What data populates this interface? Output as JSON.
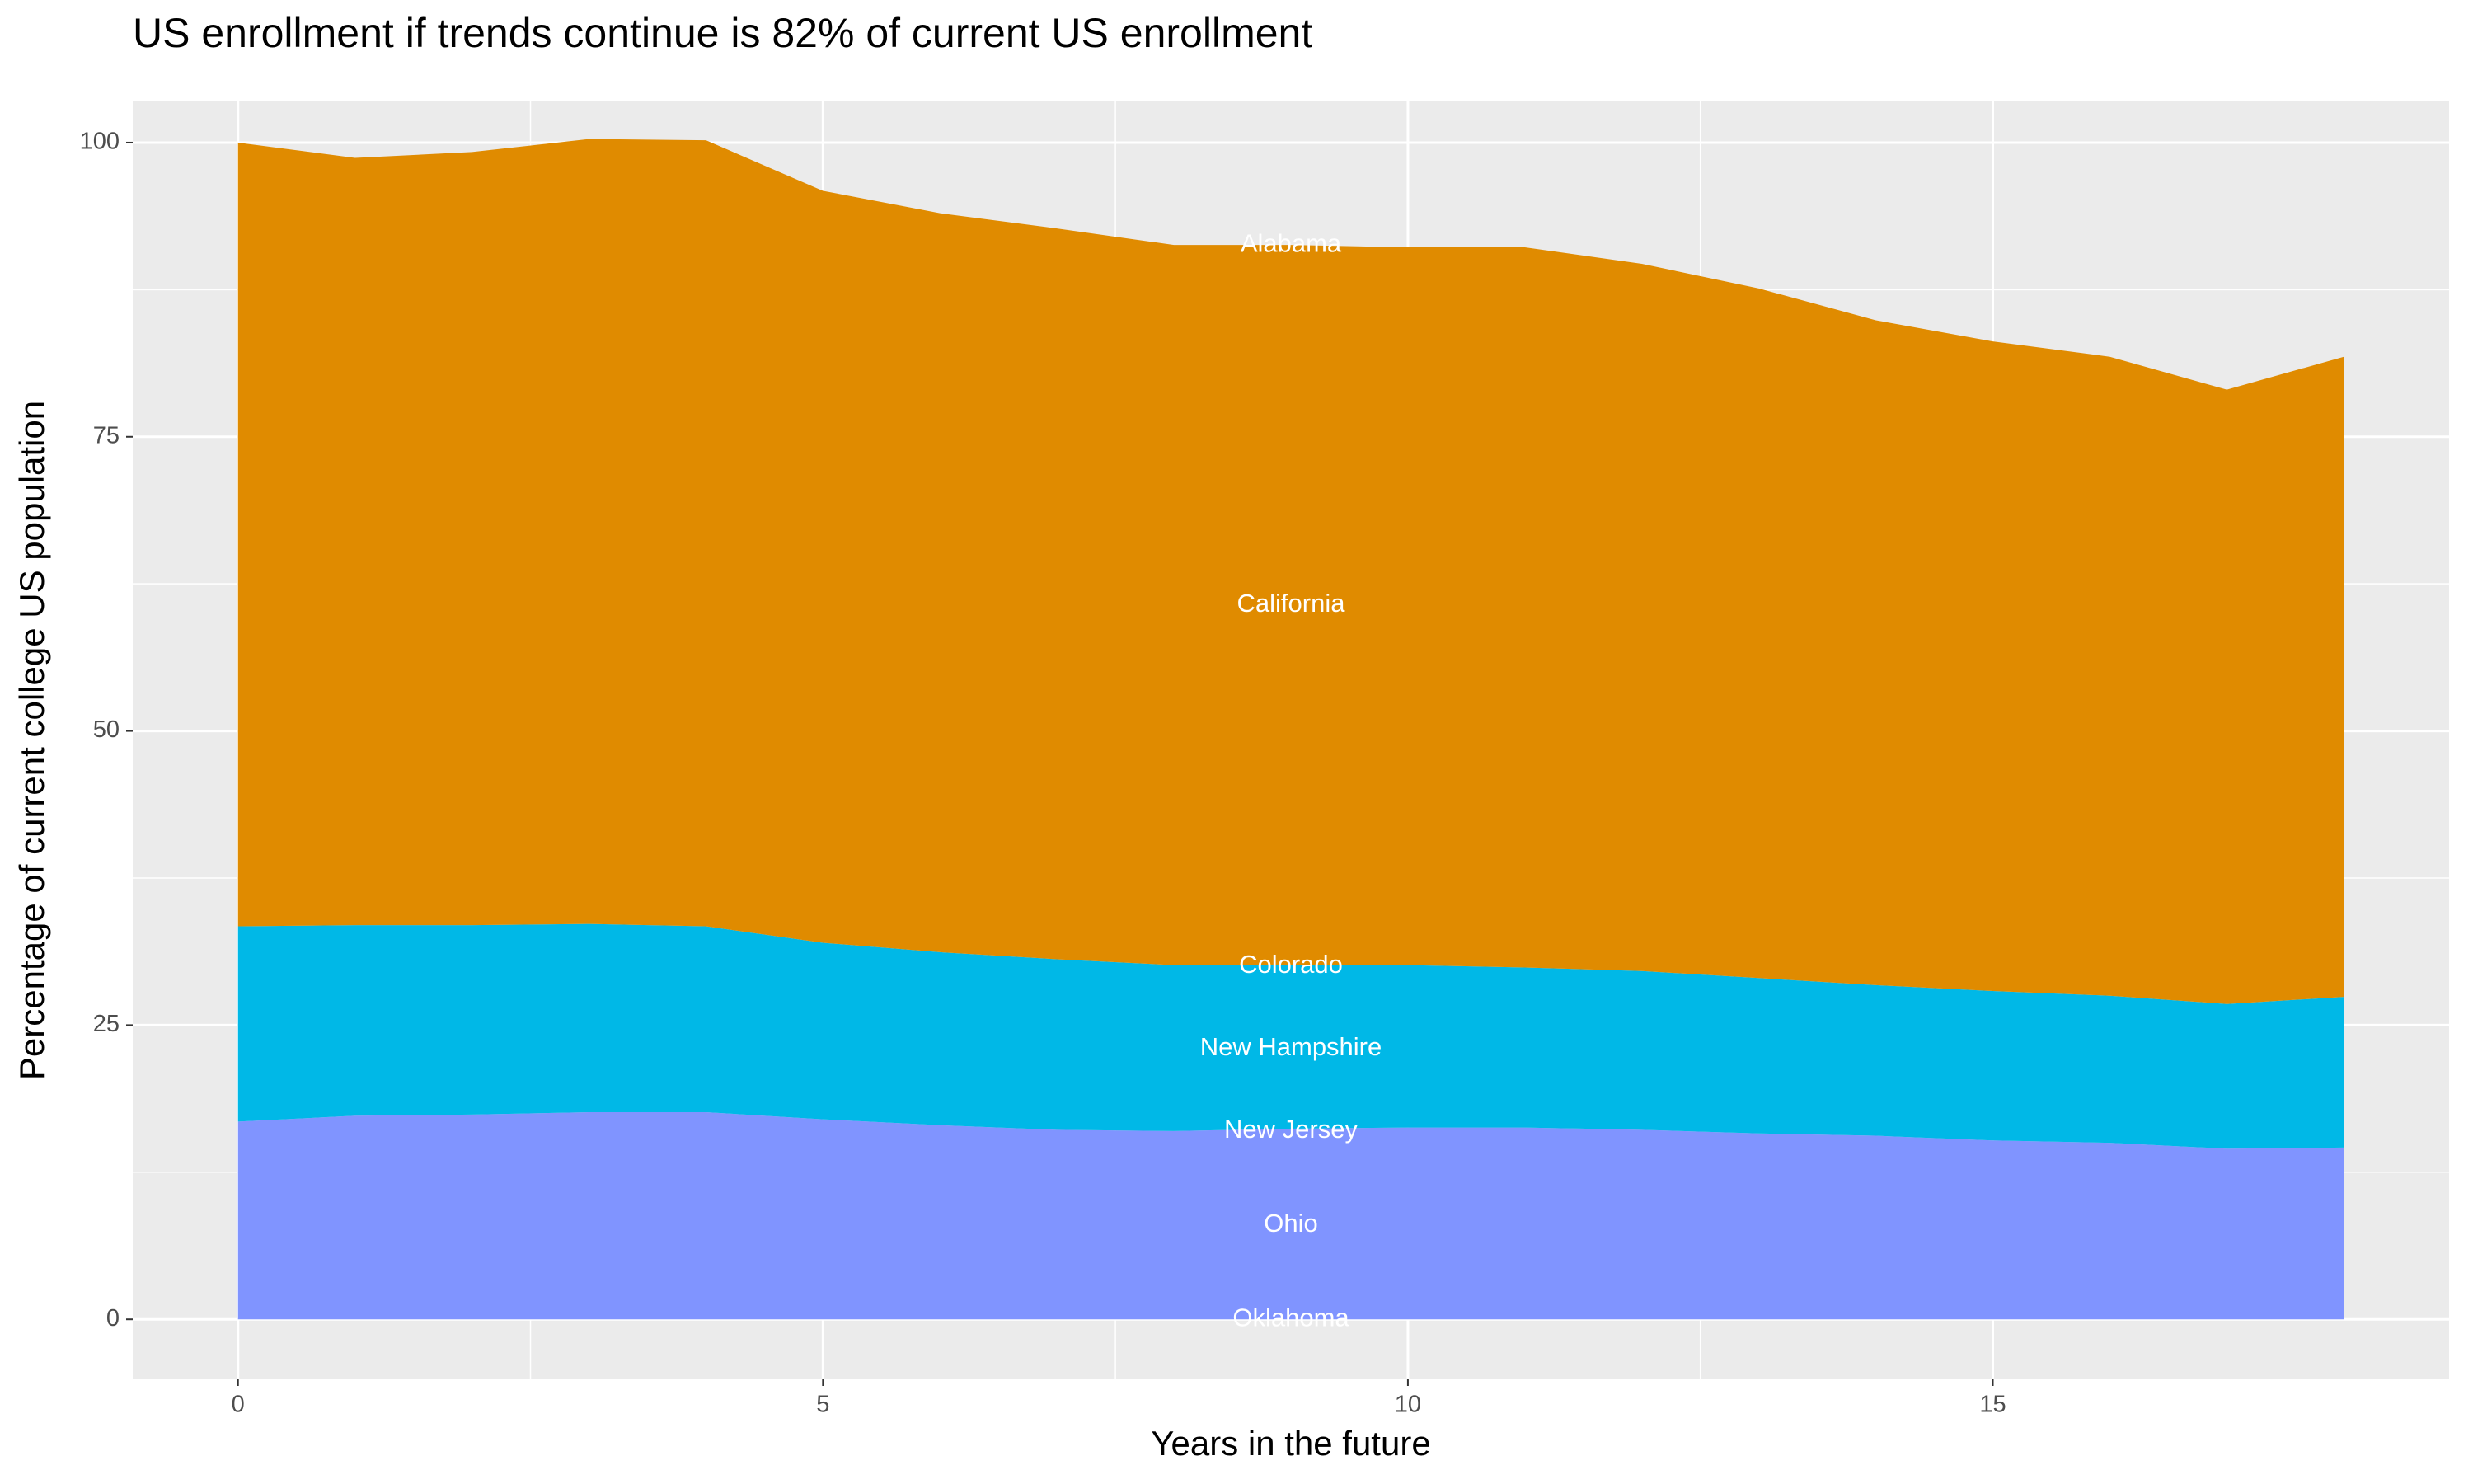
{
  "chart_data": {
    "type": "stacked_area",
    "title": "US enrollment if trends continue is 82% of current US enrollment",
    "x_label": "Years in the future",
    "y_label": "Percentage of current college US population",
    "x": [
      0,
      1,
      2,
      3,
      4,
      5,
      6,
      7,
      8,
      9,
      10,
      11,
      12,
      13,
      14,
      15,
      16,
      17,
      18
    ],
    "series": [
      {
        "color": "#8094FF",
        "values": [
          16.8,
          17.3,
          17.4,
          17.6,
          17.6,
          17.0,
          16.5,
          16.1,
          16.0,
          16.2,
          16.3,
          16.3,
          16.1,
          15.8,
          15.6,
          15.2,
          15.0,
          14.5,
          14.6
        ]
      },
      {
        "color": "#00B8E7",
        "values": [
          16.6,
          16.2,
          16.1,
          16.0,
          15.8,
          15.0,
          14.7,
          14.5,
          14.1,
          13.9,
          13.8,
          13.6,
          13.5,
          13.2,
          12.8,
          12.7,
          12.5,
          12.3,
          12.8
        ]
      },
      {
        "color": "#E08B00",
        "values": [
          66.6,
          65.2,
          65.7,
          66.7,
          66.8,
          63.9,
          62.8,
          62.1,
          61.2,
          61.2,
          61.0,
          61.2,
          60.1,
          58.6,
          56.5,
          55.2,
          54.3,
          52.2,
          54.4
        ]
      }
    ],
    "annotations": [
      {
        "text": "Alabama",
        "x": 9,
        "y": 91.3
      },
      {
        "text": "California",
        "x": 9,
        "y": 60.7
      },
      {
        "text": "Colorado",
        "x": 9,
        "y": 30.0
      },
      {
        "text": "New Hampshire",
        "x": 9,
        "y": 23.0
      },
      {
        "text": "New Jersey",
        "x": 9,
        "y": 16.0
      },
      {
        "text": "Ohio",
        "x": 9,
        "y": 8.0
      },
      {
        "text": "Oklahoma",
        "x": 9,
        "y": 0
      }
    ],
    "xlim": [
      -0.9,
      18.9
    ],
    "ylim": [
      -5.1,
      103.5
    ],
    "xticks": [
      0,
      5,
      10,
      15
    ],
    "yticks": [
      0,
      25,
      50,
      75,
      100
    ],
    "grid": true,
    "minor_grid": true
  }
}
